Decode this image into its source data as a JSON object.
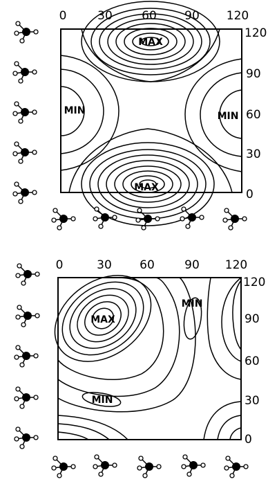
{
  "panels": [
    {
      "top_ticks": [
        "0",
        "30",
        "60",
        "90",
        "120"
      ],
      "right_ticks": [
        "120",
        "90",
        "60",
        "30",
        "0"
      ],
      "labels": [
        "MAX",
        "MIN",
        "MIN",
        "MAX"
      ]
    },
    {
      "top_ticks": [
        "0",
        "30",
        "60",
        "90",
        "120"
      ],
      "right_ticks": [
        "120",
        "90",
        "60",
        "30",
        "0"
      ],
      "labels": [
        "MAX",
        "MIN",
        "MIN"
      ]
    }
  ],
  "colors": {
    "line": "#000000",
    "background": "#ffffff"
  },
  "icons": {
    "molecule": "tetrahedral-molecule-icon"
  }
}
